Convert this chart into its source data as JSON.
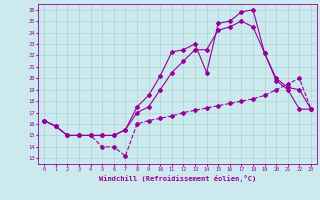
{
  "bg_color": "#cce9ed",
  "line_color": "#990099",
  "grid_color": "#aad4d8",
  "xlabel": "Windchill (Refroidissement éolien,°C)",
  "ylabel_ticks": [
    13,
    14,
    15,
    16,
    17,
    18,
    19,
    20,
    21,
    22,
    23,
    24,
    25,
    26
  ],
  "xticks": [
    0,
    1,
    2,
    3,
    4,
    5,
    6,
    7,
    8,
    9,
    10,
    11,
    12,
    13,
    14,
    15,
    16,
    17,
    18,
    19,
    20,
    21,
    22,
    23
  ],
  "xlim": [
    -0.5,
    23.5
  ],
  "ylim": [
    12.5,
    26.5
  ],
  "series_dashed_x": [
    0,
    1,
    2,
    3,
    4,
    5,
    6,
    7,
    8,
    9,
    10,
    11,
    12,
    13,
    14,
    15,
    16,
    17,
    18,
    19,
    20,
    21,
    22,
    23
  ],
  "series_dashed_y": [
    16.3,
    15.8,
    15.0,
    15.0,
    15.0,
    14.0,
    14.0,
    13.2,
    16.0,
    16.3,
    16.5,
    16.7,
    17.0,
    17.2,
    17.4,
    17.6,
    17.8,
    18.0,
    18.2,
    18.5,
    19.0,
    19.5,
    20.0,
    17.3
  ],
  "series_solid1_x": [
    0,
    1,
    2,
    3,
    4,
    5,
    6,
    7,
    8,
    9,
    10,
    11,
    12,
    13,
    14,
    15,
    16,
    17,
    18,
    19,
    20,
    21,
    22,
    23
  ],
  "series_solid1_y": [
    16.3,
    15.8,
    15.0,
    15.0,
    15.0,
    15.0,
    15.0,
    15.5,
    17.5,
    18.5,
    20.2,
    22.3,
    22.5,
    23.0,
    20.5,
    24.8,
    25.0,
    25.8,
    26.0,
    22.2,
    19.8,
    19.0,
    17.3,
    17.3
  ],
  "series_solid2_x": [
    0,
    1,
    2,
    3,
    4,
    5,
    6,
    7,
    8,
    9,
    10,
    11,
    12,
    13,
    14,
    15,
    16,
    17,
    18,
    19,
    20,
    21,
    22,
    23
  ],
  "series_solid2_y": [
    16.3,
    15.8,
    15.0,
    15.0,
    15.0,
    15.0,
    15.0,
    15.5,
    17.0,
    17.5,
    19.0,
    20.5,
    21.5,
    22.5,
    22.5,
    24.2,
    24.5,
    25.0,
    24.5,
    22.2,
    20.0,
    19.2,
    19.0,
    17.3
  ]
}
